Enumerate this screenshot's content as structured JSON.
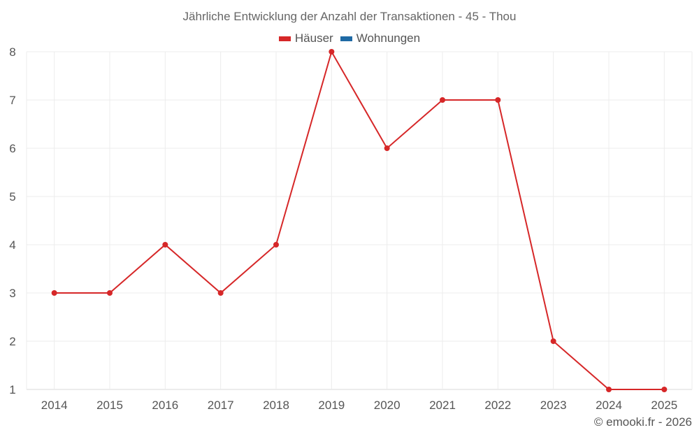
{
  "title": "Jährliche Entwicklung der Anzahl der Transaktionen - 45 - Thou",
  "legend": [
    {
      "label": "Häuser",
      "color": "#d62728"
    },
    {
      "label": "Wohnungen",
      "color": "#1f6aa5"
    }
  ],
  "footer": "© emooki.fr - 2026",
  "chart_data": {
    "type": "line",
    "title": "Jährliche Entwicklung der Anzahl der Transaktionen - 45 - Thou",
    "xlabel": "",
    "ylabel": "",
    "categories": [
      "2014",
      "2015",
      "2016",
      "2017",
      "2018",
      "2019",
      "2020",
      "2021",
      "2022",
      "2023",
      "2024",
      "2025"
    ],
    "series": [
      {
        "name": "Häuser",
        "color": "#d62728",
        "values": [
          3,
          3,
          4,
          3,
          4,
          8,
          6,
          7,
          7,
          2,
          1,
          1
        ]
      },
      {
        "name": "Wohnungen",
        "color": "#1f6aa5",
        "values": []
      }
    ],
    "ylim": [
      1,
      8
    ],
    "yticks": [
      1,
      2,
      3,
      4,
      5,
      6,
      7,
      8
    ],
    "grid": true,
    "legend_position": "top"
  }
}
